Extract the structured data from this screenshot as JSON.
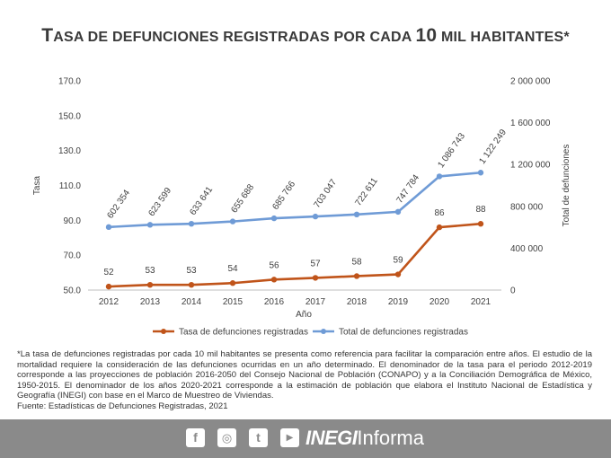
{
  "title": {
    "initial": "T",
    "rest": "asa de defunciones registradas por cada ",
    "number": "10",
    "rest2": " mil habitantes*"
  },
  "chart_data": {
    "type": "line",
    "categories": [
      "2012",
      "2013",
      "2014",
      "2015",
      "2016",
      "2017",
      "2018",
      "2019",
      "2020",
      "2021"
    ],
    "xlabel": "Año",
    "ylabel_left": "Tasa",
    "ylabel_right": "Total de defunciones",
    "ylim_left": [
      50,
      170
    ],
    "ylim_right": [
      0,
      2000000
    ],
    "yticks_left": [
      "50.0",
      "70.0",
      "90.0",
      "110.0",
      "130.0",
      "150.0",
      "170.0"
    ],
    "yticks_right": [
      "0",
      "400 000",
      "800 000",
      "1 200 000",
      "1 600 000",
      "2 000 000"
    ],
    "grid": false,
    "legend_position": "bottom",
    "series": [
      {
        "name": "Tasa de defunciones registradas",
        "axis": "left",
        "color": "#c0541a",
        "values": [
          52,
          53,
          53,
          54,
          56,
          57,
          58,
          59,
          86,
          88
        ],
        "labels": [
          "52",
          "53",
          "53",
          "54",
          "56",
          "57",
          "58",
          "59",
          "86",
          "88"
        ]
      },
      {
        "name": "Total de defunciones registradas",
        "axis": "right",
        "color": "#6f9bd6",
        "values": [
          602354,
          623599,
          633641,
          655688,
          685766,
          703047,
          722611,
          747784,
          1086743,
          1122249
        ],
        "labels": [
          "602 354",
          "623 599",
          "633 641",
          "655 688",
          "685 766",
          "703 047",
          "722 611",
          "747 784",
          "1 086 743",
          "1 122 249"
        ]
      }
    ]
  },
  "note": {
    "text": "*La tasa de defunciones registradas por cada 10 mil habitantes se presenta como referencia para facilitar la comparación entre años. El estudio de la mortalidad requiere la consideración de las defunciones ocurridas en un año determinado. El denominador de la tasa para el periodo 2012-2019 corresponde a las proyecciones de población 2016-2050 del Consejo Nacional de Población (CONAPO) y a la Conciliación Demográfica de México, 1950-2015. El denominador de los años 2020-2021 corresponde a la estimación de población que elabora el Instituto Nacional de Estadística y Geografía (INEGI) con base en el Marco de Muestreo de Viviendas.",
    "source": "Fuente: Estadísticas de Defunciones Registradas, 2021"
  },
  "footer": {
    "icons": [
      "facebook-icon",
      "instagram-icon",
      "twitter-icon",
      "youtube-icon"
    ],
    "icon_glyphs": [
      "f",
      "◎",
      "t",
      "▶"
    ],
    "brand_bold": "INEGI",
    "brand_regular": "Informa",
    "background": "#8a8a8a"
  }
}
